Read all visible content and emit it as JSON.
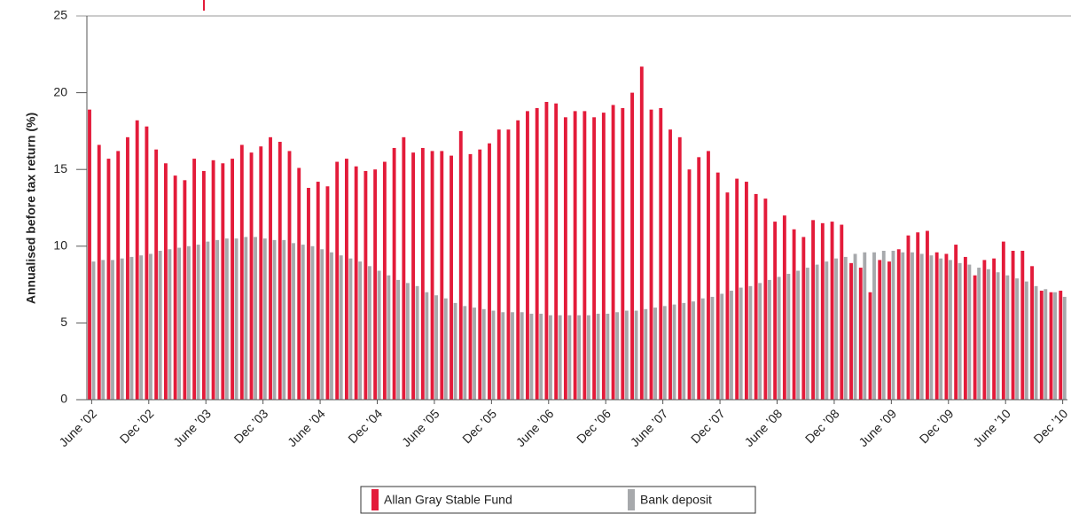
{
  "chart_data": {
    "type": "bar",
    "ylabel": "Annualised before tax return (%)",
    "categories": [
      "June ’02",
      null,
      null,
      null,
      null,
      null,
      "Dec ’02",
      null,
      null,
      null,
      null,
      null,
      "June ’03",
      null,
      null,
      null,
      null,
      null,
      "Dec ’03",
      null,
      null,
      null,
      null,
      null,
      "June ’04",
      null,
      null,
      null,
      null,
      null,
      "Dec ’04",
      null,
      null,
      null,
      null,
      null,
      "June ’05",
      null,
      null,
      null,
      null,
      null,
      "Dec ’05",
      null,
      null,
      null,
      null,
      null,
      "June ’06",
      null,
      null,
      null,
      null,
      null,
      "Dec ’06",
      null,
      null,
      null,
      null,
      null,
      "June ’07",
      null,
      null,
      null,
      null,
      null,
      "Dec ’07",
      null,
      null,
      null,
      null,
      null,
      "June ’08",
      null,
      null,
      null,
      null,
      null,
      "Dec ’08",
      null,
      null,
      null,
      null,
      null,
      "June ’09",
      null,
      null,
      null,
      null,
      null,
      "Dec ’09",
      null,
      null,
      null,
      null,
      null,
      "June ’10",
      null,
      null,
      null,
      null,
      null,
      "Dec ’10"
    ],
    "series": [
      {
        "name": "Allan Gray Stable Fund",
        "color": "#e31b3a",
        "values": [
          18.9,
          16.6,
          15.7,
          16.2,
          17.1,
          18.2,
          17.8,
          16.3,
          15.4,
          14.6,
          14.3,
          15.7,
          14.9,
          15.6,
          15.4,
          15.7,
          16.6,
          16.1,
          16.5,
          17.1,
          16.8,
          16.2,
          15.1,
          13.8,
          14.2,
          13.9,
          15.5,
          15.7,
          15.2,
          14.9,
          15.0,
          15.5,
          16.4,
          17.1,
          16.1,
          16.4,
          16.2,
          16.2,
          15.9,
          17.5,
          16.0,
          16.3,
          16.7,
          17.6,
          17.6,
          18.2,
          18.8,
          19.0,
          19.4,
          19.3,
          18.4,
          18.8,
          18.8,
          18.4,
          18.7,
          19.2,
          19.0,
          20.0,
          21.7,
          18.9,
          19.0,
          17.6,
          17.1,
          15.0,
          15.8,
          16.2,
          14.8,
          13.5,
          14.4,
          14.2,
          13.4,
          13.1,
          11.6,
          12.0,
          11.1,
          10.6,
          11.7,
          11.5,
          11.6,
          11.4,
          8.9,
          8.6,
          7.0,
          9.1,
          9.0,
          9.8,
          10.7,
          10.9,
          11.0,
          9.6,
          9.5,
          10.1,
          9.3,
          8.1,
          9.1,
          9.2,
          10.3,
          9.7,
          9.7,
          8.7,
          7.1,
          7.0,
          7.1
        ]
      },
      {
        "name": "Bank deposit",
        "color": "#a7a9ac",
        "values": [
          9.0,
          9.1,
          9.1,
          9.2,
          9.3,
          9.4,
          9.5,
          9.7,
          9.8,
          9.9,
          10.0,
          10.1,
          10.3,
          10.4,
          10.5,
          10.5,
          10.6,
          10.6,
          10.5,
          10.4,
          10.4,
          10.2,
          10.1,
          10.0,
          9.8,
          9.6,
          9.4,
          9.2,
          9.0,
          8.7,
          8.4,
          8.1,
          7.8,
          7.6,
          7.4,
          7.0,
          6.8,
          6.6,
          6.3,
          6.1,
          6.0,
          5.9,
          5.8,
          5.7,
          5.7,
          5.7,
          5.6,
          5.6,
          5.5,
          5.5,
          5.5,
          5.5,
          5.5,
          5.6,
          5.6,
          5.7,
          5.8,
          5.8,
          5.9,
          6.0,
          6.1,
          6.2,
          6.3,
          6.4,
          6.6,
          6.7,
          6.9,
          7.1,
          7.3,
          7.4,
          7.6,
          7.8,
          8.0,
          8.2,
          8.4,
          8.6,
          8.8,
          9.0,
          9.2,
          9.3,
          9.5,
          9.6,
          9.6,
          9.7,
          9.7,
          9.6,
          9.6,
          9.5,
          9.4,
          9.2,
          9.1,
          8.9,
          8.8,
          8.6,
          8.5,
          8.3,
          8.1,
          7.9,
          7.7,
          7.4,
          7.2,
          7.0,
          6.7
        ]
      }
    ],
    "ylim": [
      0,
      25
    ],
    "yticks": [
      0,
      5,
      10,
      15,
      20,
      25
    ]
  }
}
